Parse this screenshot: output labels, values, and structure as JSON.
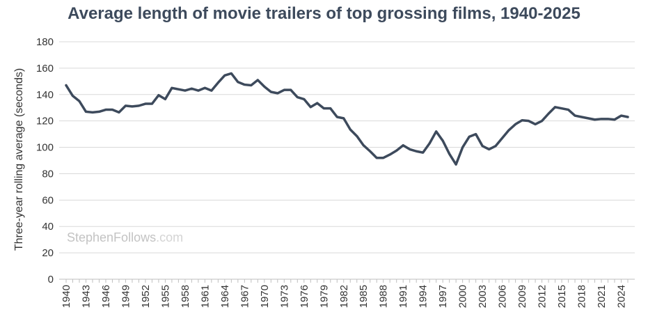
{
  "chart_data": {
    "type": "line",
    "title": "Average length of movie trailers of top grossing films, 1940-2025",
    "xlabel": "",
    "ylabel": "Three-year rolling average (seconds)",
    "ylim": [
      0,
      180
    ],
    "yticks": [
      0,
      20,
      40,
      60,
      80,
      100,
      120,
      140,
      160,
      180
    ],
    "xlim": [
      1940,
      2025
    ],
    "xticks": [
      1940,
      1943,
      1946,
      1949,
      1952,
      1955,
      1958,
      1961,
      1964,
      1967,
      1970,
      1973,
      1976,
      1979,
      1982,
      1985,
      1988,
      1991,
      1994,
      1997,
      2000,
      2003,
      2006,
      2009,
      2012,
      2015,
      2018,
      2021,
      2024
    ],
    "grid": true,
    "legend": "none",
    "line_color": "#3d4a5c",
    "x": [
      1940,
      1941,
      1942,
      1943,
      1944,
      1945,
      1946,
      1947,
      1948,
      1949,
      1950,
      1951,
      1952,
      1953,
      1954,
      1955,
      1956,
      1957,
      1958,
      1959,
      1960,
      1961,
      1962,
      1963,
      1964,
      1965,
      1966,
      1967,
      1968,
      1969,
      1970,
      1971,
      1972,
      1973,
      1974,
      1975,
      1976,
      1977,
      1978,
      1979,
      1980,
      1981,
      1982,
      1983,
      1984,
      1985,
      1986,
      1987,
      1988,
      1989,
      1990,
      1991,
      1992,
      1993,
      1994,
      1995,
      1996,
      1997,
      1998,
      1999,
      2000,
      2001,
      2002,
      2003,
      2004,
      2005,
      2006,
      2007,
      2008,
      2009,
      2010,
      2011,
      2012,
      2013,
      2014,
      2015,
      2016,
      2017,
      2018,
      2019,
      2020,
      2021,
      2022,
      2023,
      2024,
      2025
    ],
    "series": [
      {
        "values": [
          147,
          139,
          135,
          127,
          126.5,
          127,
          128.5,
          128.5,
          126.5,
          131.5,
          131,
          131.5,
          133,
          133,
          139.5,
          136.5,
          145,
          144,
          143,
          144.5,
          143,
          145,
          143,
          149,
          154.5,
          156,
          149.5,
          147.5,
          147,
          151,
          146,
          142,
          141,
          143.5,
          143.5,
          138,
          136.5,
          130.5,
          133.5,
          129.5,
          129.5,
          123,
          122,
          113.5,
          108.5,
          101.5,
          97,
          92,
          92,
          94.5,
          97.5,
          101.5,
          98.5,
          97,
          96,
          103,
          112,
          105,
          95,
          87,
          100,
          108,
          110,
          101,
          98.5,
          101,
          107,
          113,
          117.5,
          120.5,
          120,
          117.5,
          120,
          125.5,
          130.5,
          129.5,
          128.5,
          124,
          123,
          122,
          121,
          121.5,
          121.5,
          121,
          124,
          123
        ]
      }
    ],
    "watermark": "StephenFollows.com",
    "watermark_parts": [
      "StephenFollows",
      ".com"
    ]
  }
}
